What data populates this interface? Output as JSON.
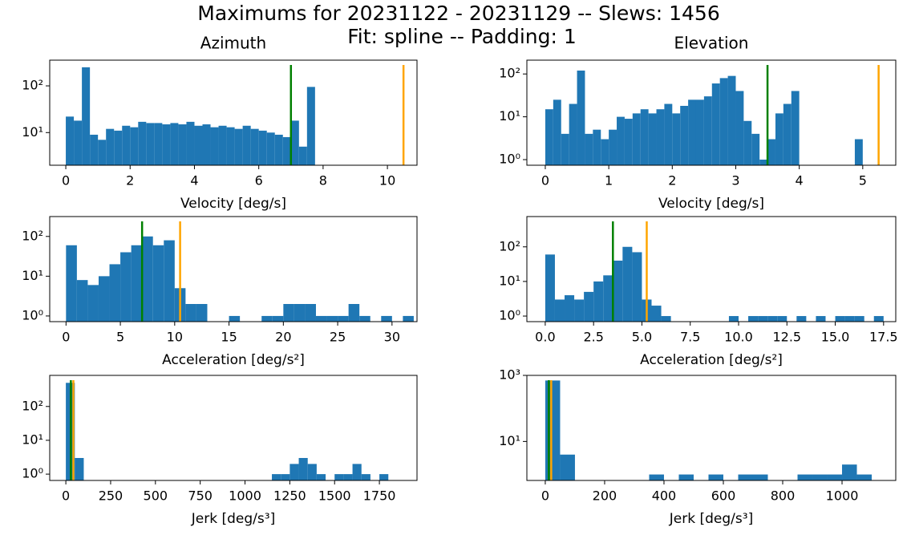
{
  "title": "Maximums for 20231122 - 20231129 -- Slews: 1456",
  "subtitle": "Fit: spline -- Padding: 1",
  "chart_data": [
    {
      "type": "histogram",
      "title": "Azimuth",
      "xlabel": "Velocity [deg/s]",
      "color": "#1f77b4",
      "log_y": true,
      "bins": [
        0,
        0.25,
        0.5,
        0.75,
        1,
        1.25,
        1.5,
        1.75,
        2,
        2.25,
        2.5,
        2.75,
        3,
        3.25,
        3.5,
        3.75,
        4,
        4.25,
        4.5,
        4.75,
        5,
        5.25,
        5.5,
        5.75,
        6,
        6.25,
        6.5,
        6.75,
        7,
        7.25,
        7.5,
        7.75
      ],
      "values": [
        22,
        18,
        250,
        9,
        7,
        12,
        11,
        14,
        13,
        17,
        16,
        16,
        15,
        16,
        15,
        17,
        14,
        15,
        13,
        14,
        13,
        12,
        14,
        12,
        11,
        10,
        9,
        8,
        18,
        5,
        95
      ],
      "xlim": [
        -0.5,
        10.92
      ],
      "xticks": [
        0,
        2,
        4,
        6,
        8,
        10
      ],
      "ylim": [
        2,
        355
      ],
      "yticks": [
        {
          "value": 10,
          "label": "10¹"
        },
        {
          "value": 100,
          "label": "10²"
        }
      ],
      "vlines": [
        {
          "value": 7,
          "color": "green"
        },
        {
          "value": 10.5,
          "color": "orange"
        }
      ]
    },
    {
      "type": "histogram",
      "title": "Elevation",
      "xlabel": "Velocity [deg/s]",
      "color": "#1f77b4",
      "log_y": true,
      "bins": [
        0,
        0.125,
        0.25,
        0.375,
        0.5,
        0.625,
        0.75,
        0.875,
        1,
        1.125,
        1.25,
        1.375,
        1.5,
        1.625,
        1.75,
        1.875,
        2,
        2.125,
        2.25,
        2.375,
        2.5,
        2.625,
        2.75,
        2.875,
        3,
        3.125,
        3.25,
        3.375,
        3.5,
        3.625,
        3.75,
        3.875,
        4,
        4.125,
        4.25,
        4.375,
        4.5,
        4.625,
        4.75,
        4.875,
        5,
        5.125
      ],
      "values": [
        15,
        25,
        4,
        20,
        120,
        4,
        5,
        3,
        5,
        10,
        9,
        12,
        15,
        12,
        15,
        20,
        12,
        18,
        25,
        25,
        30,
        60,
        80,
        90,
        40,
        8,
        4,
        1,
        3,
        12,
        20,
        40,
        0,
        0,
        0,
        0,
        0,
        0,
        0,
        3,
        0
      ],
      "xlim": [
        -0.29,
        5.52
      ],
      "xticks": [
        0,
        1,
        2,
        3,
        4,
        5
      ],
      "ylim": [
        0.74,
        210
      ],
      "yticks": [
        {
          "value": 1,
          "label": "10⁰"
        },
        {
          "value": 10,
          "label": "10¹"
        },
        {
          "value": 100,
          "label": "10²"
        }
      ],
      "vlines": [
        {
          "value": 3.5,
          "color": "green"
        },
        {
          "value": 5.25,
          "color": "orange"
        }
      ]
    },
    {
      "type": "histogram",
      "xlabel": "Acceleration [deg/s²]",
      "color": "#1f77b4",
      "log_y": true,
      "bins": [
        0,
        1,
        2,
        3,
        4,
        5,
        6,
        7,
        8,
        9,
        10,
        11,
        12,
        13,
        14,
        15,
        16,
        17,
        18,
        19,
        20,
        21,
        22,
        23,
        24,
        25,
        26,
        27,
        28,
        29,
        30,
        31,
        32
      ],
      "values": [
        60,
        8,
        6,
        10,
        20,
        40,
        60,
        100,
        60,
        80,
        5,
        2,
        2,
        0,
        0,
        1,
        0,
        0,
        1,
        1,
        2,
        2,
        2,
        1,
        1,
        1,
        2,
        1,
        0,
        1,
        0,
        1
      ],
      "xlim": [
        -1.5,
        32.3
      ],
      "xticks": [
        0,
        5,
        10,
        15,
        20,
        25,
        30
      ],
      "ylim": [
        0.72,
        316
      ],
      "yticks": [
        {
          "value": 1,
          "label": "10⁰"
        },
        {
          "value": 10,
          "label": "10¹"
        },
        {
          "value": 100,
          "label": "10²"
        }
      ],
      "vlines": [
        {
          "value": 7,
          "color": "green"
        },
        {
          "value": 10.5,
          "color": "orange"
        }
      ]
    },
    {
      "type": "histogram",
      "xlabel": "Acceleration [deg/s²]",
      "color": "#1f77b4",
      "log_y": true,
      "bins": [
        0,
        0.5,
        1,
        1.5,
        2,
        2.5,
        3,
        3.5,
        4,
        4.5,
        5,
        5.5,
        6,
        6.5,
        7,
        7.5,
        8,
        8.5,
        9,
        9.5,
        10,
        10.5,
        11,
        11.5,
        12,
        12.5,
        13,
        13.5,
        14,
        14.5,
        15,
        15.5,
        16,
        16.5,
        17,
        17.5
      ],
      "values": [
        60,
        3,
        4,
        3,
        5,
        10,
        15,
        40,
        100,
        70,
        3,
        2,
        1,
        0,
        0,
        0,
        0,
        0,
        0,
        1,
        0,
        1,
        1,
        1,
        1,
        0,
        1,
        0,
        1,
        0,
        1,
        1,
        1,
        0,
        1
      ],
      "xlim": [
        -0.95,
        18.13
      ],
      "xticks": [
        {
          "value": 0,
          "label": "0.0"
        },
        2.5,
        {
          "value": 5,
          "label": "5.0"
        },
        7.5,
        {
          "value": 10,
          "label": "10.0"
        },
        12.5,
        {
          "value": 15,
          "label": "15.0"
        },
        17.5
      ],
      "ylim": [
        0.69,
        750
      ],
      "yticks": [
        {
          "value": 1,
          "label": "10⁰"
        },
        {
          "value": 10,
          "label": "10¹"
        },
        {
          "value": 100,
          "label": "10²"
        }
      ],
      "vlines": [
        {
          "value": 3.5,
          "color": "green"
        },
        {
          "value": 5.25,
          "color": "orange"
        }
      ]
    },
    {
      "type": "histogram",
      "xlabel": "Jerk [deg/s³]",
      "color": "#1f77b4",
      "log_y": true,
      "bins": [
        0,
        50,
        100,
        150,
        200,
        250,
        300,
        350,
        400,
        450,
        500,
        550,
        600,
        650,
        700,
        750,
        800,
        850,
        900,
        950,
        1000,
        1050,
        1100,
        1150,
        1200,
        1250,
        1300,
        1350,
        1400,
        1450,
        1500,
        1550,
        1600,
        1650,
        1700,
        1750,
        1800
      ],
      "values": [
        500,
        3,
        0,
        0,
        0,
        0,
        0,
        0,
        0,
        0,
        0,
        0,
        0,
        0,
        0,
        0,
        0,
        0,
        0,
        0,
        0,
        0,
        0,
        1,
        1,
        2,
        3,
        2,
        1,
        0,
        1,
        1,
        2,
        1,
        0,
        1
      ],
      "xlim": [
        -90,
        1960
      ],
      "xticks": [
        0,
        250,
        500,
        750,
        1000,
        1250,
        1500,
        1750
      ],
      "ylim": [
        0.65,
        830
      ],
      "yticks": [
        {
          "value": 1,
          "label": "10⁰"
        },
        {
          "value": 10,
          "label": "10¹"
        },
        {
          "value": 100,
          "label": "10²"
        }
      ],
      "vlines": [
        {
          "value": 28,
          "color": "green"
        },
        {
          "value": 42,
          "color": "orange"
        }
      ]
    },
    {
      "type": "histogram",
      "xlabel": "Jerk [deg/s³]",
      "color": "#1f77b4",
      "log_y": true,
      "bins": [
        0,
        50,
        100,
        150,
        200,
        250,
        300,
        350,
        400,
        450,
        500,
        550,
        600,
        650,
        700,
        750,
        800,
        850,
        900,
        950,
        1000,
        1050,
        1100
      ],
      "values": [
        700,
        4,
        0,
        0,
        0,
        0,
        0,
        1,
        0,
        1,
        0,
        1,
        0,
        1,
        1,
        0,
        0,
        1,
        1,
        1,
        2,
        1
      ],
      "xlim": [
        -62,
        1181
      ],
      "xticks": [
        0,
        200,
        400,
        600,
        800,
        1000
      ],
      "ylim": [
        0.66,
        1000
      ],
      "yticks": [
        {
          "value": 10,
          "label": "10¹"
        },
        {
          "value": 1000,
          "label": "10³"
        }
      ],
      "vlines": [
        {
          "value": 12,
          "color": "green"
        },
        {
          "value": 20,
          "color": "orange"
        }
      ]
    }
  ]
}
